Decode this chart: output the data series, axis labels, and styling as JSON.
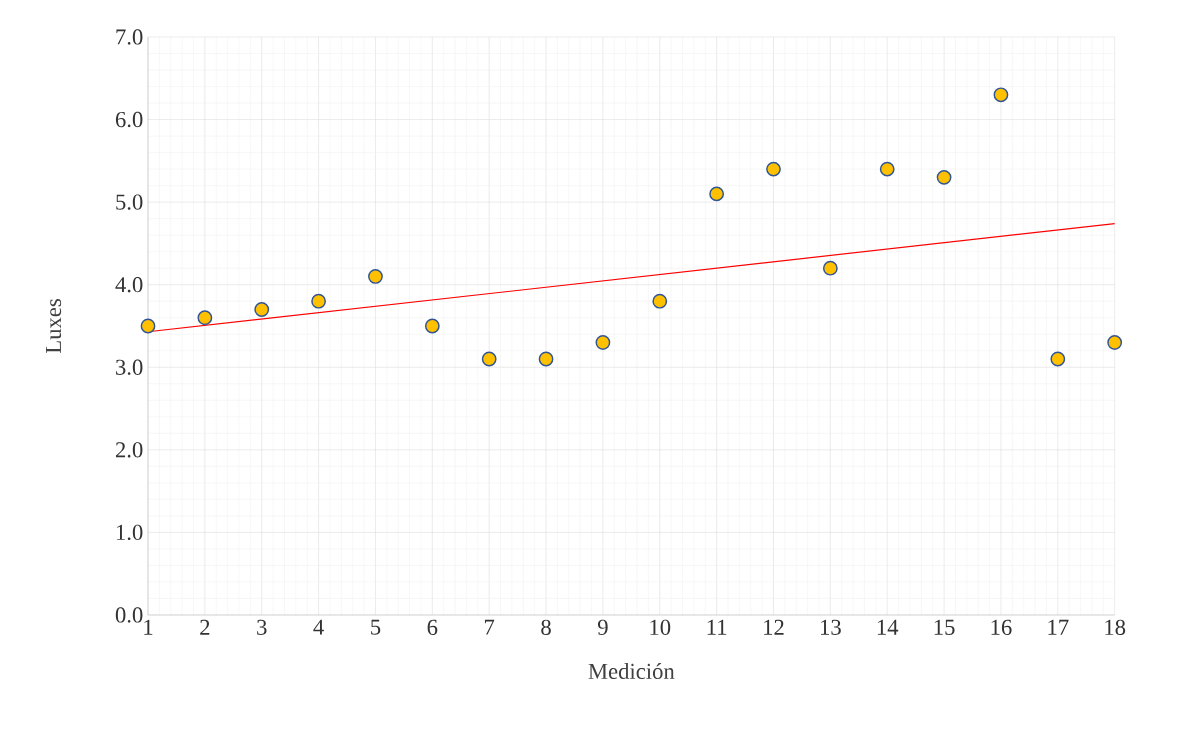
{
  "chart_data": {
    "type": "scatter",
    "xlabel": "Medición",
    "ylabel": "Luxes",
    "x": [
      1,
      2,
      3,
      4,
      5,
      6,
      7,
      8,
      9,
      10,
      11,
      12,
      13,
      14,
      15,
      16,
      17,
      18
    ],
    "series": [
      {
        "marker": "circle",
        "color": "#ffc000",
        "values": [
          3.5,
          3.6,
          3.7,
          3.8,
          4.1,
          3.5,
          3.1,
          3.1,
          3.3,
          3.8,
          5.1,
          5.4,
          4.2,
          5.4,
          5.3,
          6.3,
          3.1,
          3.3
        ]
      },
      {
        "type": "line",
        "marker": "none",
        "color": "#ff0000",
        "x": [
          1,
          18
        ],
        "values": [
          3.43,
          4.74
        ]
      }
    ],
    "grid": true,
    "xlim": [
      1,
      18
    ],
    "xticks": [
      1,
      2,
      3,
      4,
      5,
      6,
      7,
      8,
      9,
      10,
      11,
      12,
      13,
      14,
      15,
      16,
      17,
      18
    ],
    "ylim": [
      0,
      7
    ],
    "yticks": [
      {
        "value": 0,
        "label": "0.0"
      },
      {
        "value": 1,
        "label": "1.0"
      },
      {
        "value": 2,
        "label": "2.0"
      },
      {
        "value": 3,
        "label": "3.0"
      },
      {
        "value": 4,
        "label": "4.0"
      },
      {
        "value": 5,
        "label": "5.0"
      },
      {
        "value": 6,
        "label": "6.0"
      },
      {
        "value": 7,
        "label": "7.0"
      }
    ]
  }
}
